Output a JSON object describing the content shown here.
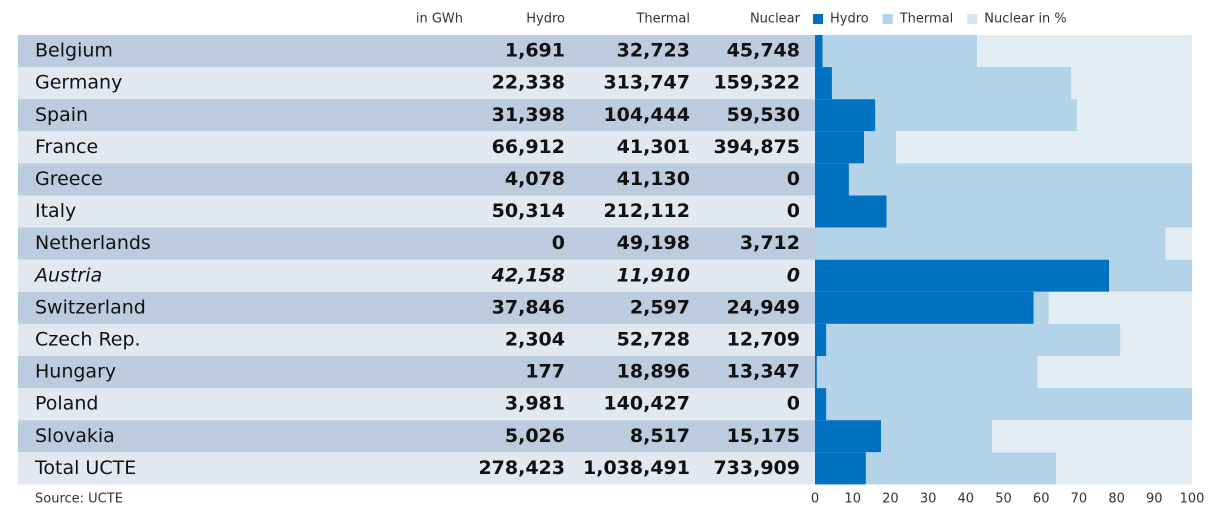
{
  "table": {
    "header": {
      "unit": "in GWh",
      "columns": [
        "Hydro",
        "Thermal",
        "Nuclear"
      ]
    },
    "rows": [
      {
        "country": "Belgium",
        "cells": [
          "1,691",
          "32,723",
          "45,748"
        ]
      },
      {
        "country": "Germany",
        "cells": [
          "22,338",
          "313,747",
          "159,322"
        ]
      },
      {
        "country": "Spain",
        "cells": [
          "31,398",
          "104,444",
          "59,530"
        ]
      },
      {
        "country": "France",
        "cells": [
          "66,912",
          "41,301",
          "394,875"
        ]
      },
      {
        "country": "Greece",
        "cells": [
          "4,078",
          "41,130",
          "0"
        ]
      },
      {
        "country": "Italy",
        "cells": [
          "50,314",
          "212,112",
          "0"
        ]
      },
      {
        "country": "Netherlands",
        "cells": [
          "0",
          "49,198",
          "3,712"
        ]
      },
      {
        "country": "Austria",
        "cells": [
          "42,158",
          "11,910",
          "0"
        ],
        "italic": true
      },
      {
        "country": "Switzerland",
        "cells": [
          "37,846",
          "2,597",
          "24,949"
        ]
      },
      {
        "country": "Czech Rep.",
        "cells": [
          "2,304",
          "52,728",
          "12,709"
        ]
      },
      {
        "country": "Hungary",
        "cells": [
          "177",
          "18,896",
          "13,347"
        ]
      },
      {
        "country": "Poland",
        "cells": [
          "3,981",
          "140,427",
          "0"
        ]
      },
      {
        "country": "Slovakia",
        "cells": [
          "5,026",
          "8,517",
          "15,175"
        ]
      },
      {
        "country": "Total UCTE",
        "cells": [
          "278,423",
          "1,038,491",
          "733,909"
        ]
      }
    ],
    "source": "Source: UCTE"
  },
  "chart_data": {
    "type": "bar",
    "orientation": "horizontal",
    "stacked": true,
    "xlim": [
      0,
      100
    ],
    "xticks": [
      0,
      10,
      20,
      30,
      40,
      50,
      60,
      70,
      80,
      90,
      100
    ],
    "series": [
      {
        "name": "Hydro",
        "color": "#0070c0",
        "values": [
          2,
          4.5,
          16,
          13,
          9,
          19,
          0,
          78,
          58,
          3,
          0.5,
          3,
          17.5,
          13.5
        ]
      },
      {
        "name": "Thermal",
        "color": "#b3d3e8",
        "values": [
          41,
          63.5,
          53.5,
          8.5,
          91,
          81,
          93,
          22,
          4,
          78,
          58.5,
          97,
          29.5,
          50.5
        ]
      },
      {
        "name": "Nuclear in %",
        "color": "#e2ecf3",
        "values": [
          57,
          32,
          30.5,
          78.5,
          0,
          0,
          7,
          0,
          38,
          19,
          41,
          0,
          53,
          36
        ]
      }
    ]
  }
}
